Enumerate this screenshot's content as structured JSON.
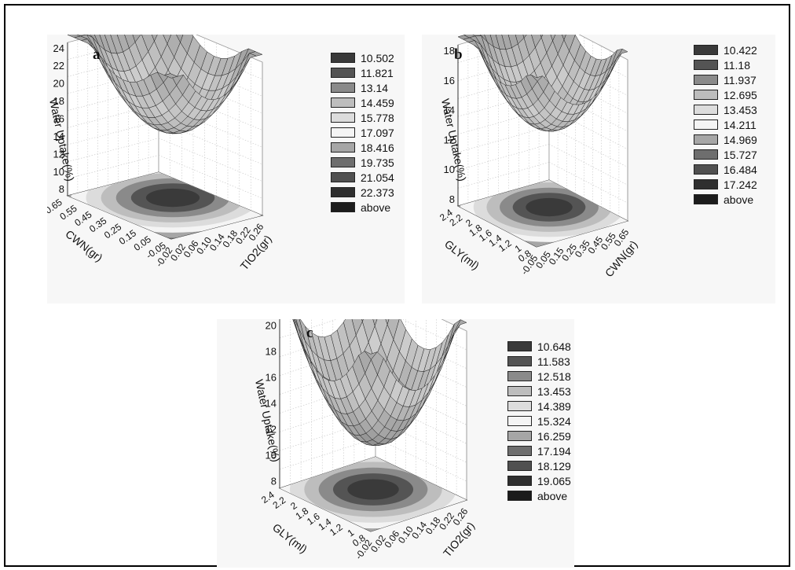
{
  "chart_data": [
    {
      "type": "surface",
      "panel_label": "a",
      "zlabel": "Water Uptake(%)",
      "xlabel": "CWN(gr)",
      "ylabel": "TIO2(gr)",
      "z_ticks": [
        "24",
        "22",
        "20",
        "18",
        "16",
        "14",
        "12",
        "10",
        "8"
      ],
      "x_ticks": [
        "0.65",
        "0.55",
        "0.45",
        "0.35",
        "0.25",
        "0.15",
        "0.05",
        "-0.05"
      ],
      "y_ticks": [
        "-0.02",
        "0.02",
        "0.06",
        "0.10",
        "0.14",
        "0.18",
        "0.22",
        "0.26"
      ],
      "legend": [
        "10.502",
        "11.821",
        "13.14",
        "14.459",
        "15.778",
        "17.097",
        "18.416",
        "19.735",
        "21.054",
        "22.373",
        "above"
      ]
    },
    {
      "type": "surface",
      "panel_label": "b",
      "zlabel": "Water Uptake(%)",
      "xlabel": "GLY(ml)",
      "ylabel": "CWN(gr)",
      "z_ticks": [
        "18",
        "16",
        "14",
        "12",
        "10",
        "8"
      ],
      "x_ticks": [
        "2.4",
        "2.2",
        "2",
        "1.8",
        "1.6",
        "1.4",
        "1.2",
        "1",
        "0.8"
      ],
      "y_ticks": [
        "-0.05",
        "0.05",
        "0.15",
        "0.25",
        "0.35",
        "0.45",
        "0.55",
        "0.65"
      ],
      "legend": [
        "10.422",
        "11.18",
        "11.937",
        "12.695",
        "13.453",
        "14.211",
        "14.969",
        "15.727",
        "16.484",
        "17.242",
        "above"
      ]
    },
    {
      "type": "surface",
      "panel_label": "c",
      "zlabel": "Water Uptake(%)",
      "xlabel": "GLY(ml)",
      "ylabel": "TIO2(gr)",
      "z_ticks": [
        "20",
        "18",
        "16",
        "14",
        "12",
        "10",
        "8"
      ],
      "x_ticks": [
        "2.4",
        "2.2",
        "2",
        "1.8",
        "1.6",
        "1.4",
        "1.2",
        "1",
        "0.8"
      ],
      "y_ticks": [
        "-0.02",
        "0.02",
        "0.06",
        "0.10",
        "0.14",
        "0.18",
        "0.22",
        "0.26"
      ],
      "legend": [
        "10.648",
        "11.583",
        "12.518",
        "13.453",
        "14.389",
        "15.324",
        "16.259",
        "17.194",
        "18.129",
        "19.065",
        "above"
      ]
    }
  ],
  "legend_colors": [
    "#3a3a3a",
    "#545454",
    "#8a8a8a",
    "#bdbdbd",
    "#dcdcdc",
    "#f4f4f4",
    "#a6a6a6",
    "#6e6e6e",
    "#505050",
    "#2f2f2f",
    "#1c1c1c"
  ]
}
